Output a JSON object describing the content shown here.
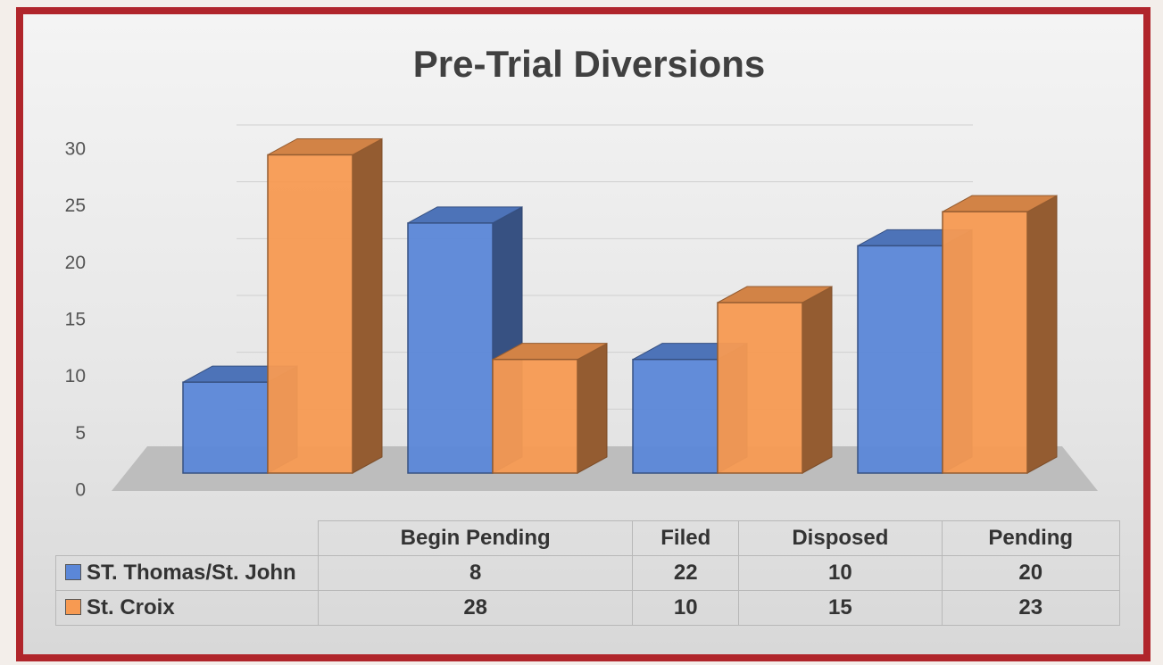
{
  "chart_data": {
    "type": "bar3d",
    "title": "Pre-Trial Diversions",
    "categories": [
      "Begin Pending",
      "Filed",
      "Disposed",
      "Pending"
    ],
    "series": [
      {
        "name": "ST. Thomas/St. John",
        "color": "#5b87d8",
        "values": [
          8,
          22,
          10,
          20
        ]
      },
      {
        "name": "St. Croix",
        "color": "#f79a52",
        "values": [
          28,
          10,
          15,
          23
        ]
      }
    ],
    "ylim": [
      0,
      30
    ],
    "yticks": [
      0,
      5,
      10,
      15,
      20,
      25,
      30
    ],
    "grid": true
  }
}
